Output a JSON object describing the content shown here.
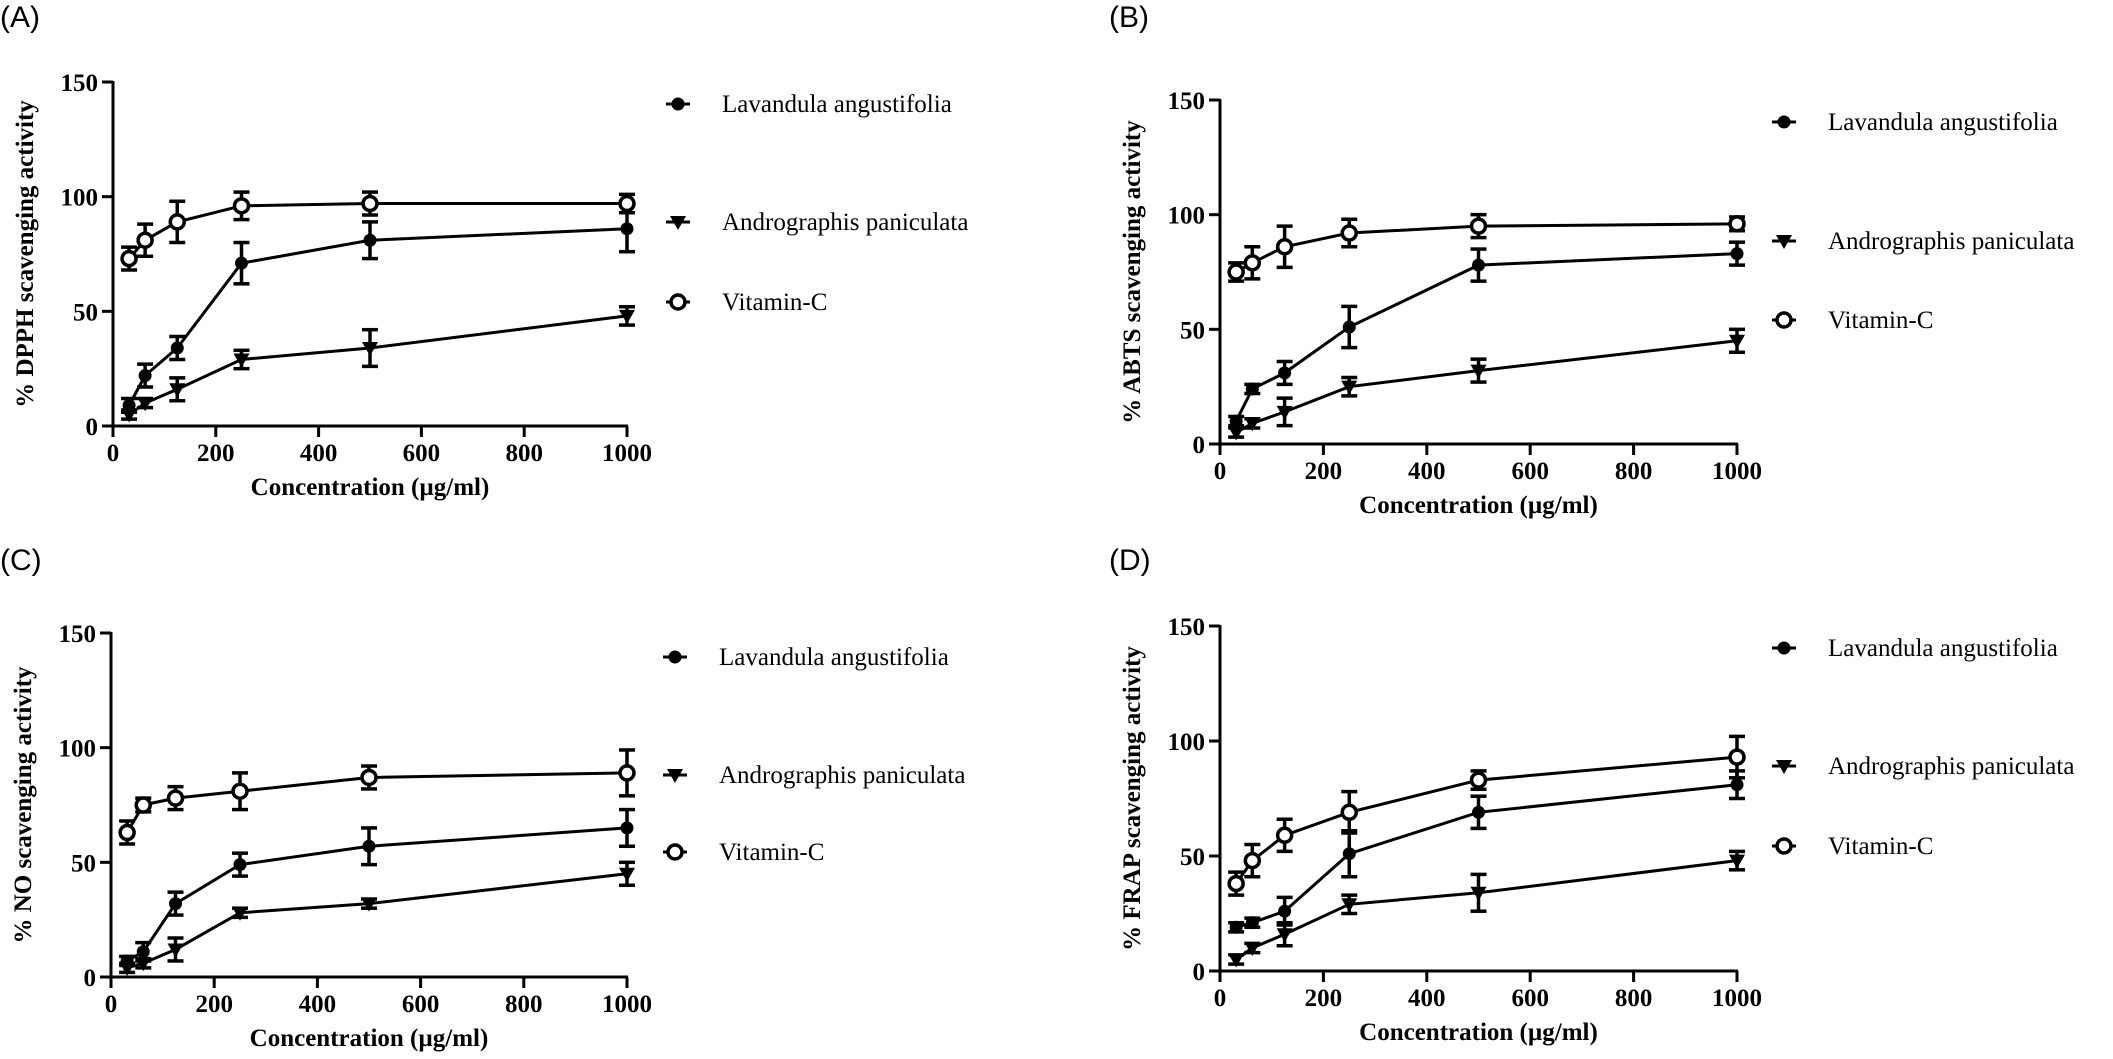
{
  "chart_data": [
    {
      "panel_label": "(A)",
      "type": "line",
      "xlabel": "Concentration (µg/ml)",
      "ylabel": "% DPPH scavenging activity",
      "xlim": [
        0,
        1000
      ],
      "ylim": [
        0,
        150
      ],
      "xticks": [
        0,
        200,
        400,
        600,
        800,
        1000
      ],
      "yticks": [
        0,
        50,
        100,
        150
      ],
      "legend_position": "right",
      "grid": false,
      "x": [
        31.25,
        62.5,
        125,
        250,
        500,
        1000
      ],
      "series": [
        {
          "name": "Lavandula angustifolia",
          "marker": "filled-circle",
          "values": [
            9,
            22,
            34,
            71,
            81,
            86
          ],
          "errors": [
            3,
            5,
            5,
            9,
            8,
            10
          ]
        },
        {
          "name": "Andrographis paniculata",
          "marker": "filled-triangle-down",
          "values": [
            5,
            10,
            16,
            29,
            34,
            48
          ],
          "errors": [
            2,
            2,
            5,
            4,
            8,
            4
          ]
        },
        {
          "name": "Vitamin-C",
          "marker": "open-circle",
          "values": [
            73,
            81,
            89,
            96,
            97,
            97
          ],
          "errors": [
            5,
            7,
            9,
            6,
            5,
            4
          ]
        }
      ]
    },
    {
      "panel_label": "(B)",
      "type": "line",
      "xlabel": "Concentration (µg/ml)",
      "ylabel": "% ABTS scavenging activity",
      "xlim": [
        0,
        1000
      ],
      "ylim": [
        0,
        150
      ],
      "xticks": [
        0,
        200,
        400,
        600,
        800,
        1000
      ],
      "yticks": [
        0,
        50,
        100,
        150
      ],
      "legend_position": "right",
      "grid": false,
      "x": [
        31.25,
        62.5,
        125,
        250,
        500,
        1000
      ],
      "series": [
        {
          "name": "Lavandula angustifolia",
          "marker": "filled-circle",
          "values": [
            10,
            24,
            31,
            51,
            78,
            83
          ],
          "errors": [
            2,
            2,
            5,
            9,
            7,
            5
          ]
        },
        {
          "name": "Andrographis paniculata",
          "marker": "filled-triangle-down",
          "values": [
            5,
            9,
            14,
            25,
            32,
            45
          ],
          "errors": [
            2,
            2,
            6,
            4,
            5,
            5
          ]
        },
        {
          "name": "Vitamin-C",
          "marker": "open-circle",
          "values": [
            75,
            79,
            86,
            92,
            95,
            96
          ],
          "errors": [
            4,
            7,
            9,
            6,
            5,
            3
          ]
        }
      ]
    },
    {
      "panel_label": "(C)",
      "type": "line",
      "xlabel": "Concentration (µg/ml)",
      "ylabel": "% NO scavenging activity",
      "xlim": [
        0,
        1000
      ],
      "ylim": [
        0,
        150
      ],
      "xticks": [
        0,
        200,
        400,
        600,
        800,
        1000
      ],
      "yticks": [
        0,
        50,
        100,
        150
      ],
      "legend_position": "right",
      "grid": false,
      "x": [
        31.25,
        62.5,
        125,
        250,
        500,
        1000
      ],
      "series": [
        {
          "name": "Lavandula angustifolia",
          "marker": "filled-circle",
          "values": [
            7,
            11,
            32,
            49,
            57,
            65
          ],
          "errors": [
            2,
            4,
            5,
            5,
            8,
            8
          ]
        },
        {
          "name": "Andrographis paniculata",
          "marker": "filled-triangle-down",
          "values": [
            4,
            6,
            12,
            28,
            32,
            45
          ],
          "errors": [
            2,
            2,
            5,
            2,
            2,
            5
          ]
        },
        {
          "name": "Vitamin-C",
          "marker": "open-circle",
          "values": [
            63,
            75,
            78,
            81,
            87,
            89
          ],
          "errors": [
            5,
            3,
            5,
            8,
            5,
            10
          ]
        }
      ]
    },
    {
      "panel_label": "(D)",
      "type": "line",
      "xlabel": "Concentration (µg/ml)",
      "ylabel": "% FRAP scavenging activity",
      "xlim": [
        0,
        1000
      ],
      "ylim": [
        0,
        150
      ],
      "xticks": [
        0,
        200,
        400,
        600,
        800,
        1000
      ],
      "yticks": [
        0,
        50,
        100,
        150
      ],
      "legend_position": "right",
      "grid": false,
      "x": [
        31.25,
        62.5,
        125,
        250,
        500,
        1000
      ],
      "series": [
        {
          "name": "Lavandula angustifolia",
          "marker": "filled-circle",
          "values": [
            19,
            21,
            26,
            51,
            69,
            81
          ],
          "errors": [
            2,
            2,
            6,
            10,
            7,
            6
          ]
        },
        {
          "name": "Andrographis paniculata",
          "marker": "filled-triangle-down",
          "values": [
            5,
            10,
            16,
            29,
            34,
            48
          ],
          "errors": [
            2,
            2,
            5,
            4,
            8,
            4
          ]
        },
        {
          "name": "Vitamin-C",
          "marker": "open-circle",
          "values": [
            38,
            48,
            59,
            69,
            83,
            93
          ],
          "errors": [
            5,
            7,
            7,
            9,
            4,
            9
          ]
        }
      ]
    }
  ]
}
